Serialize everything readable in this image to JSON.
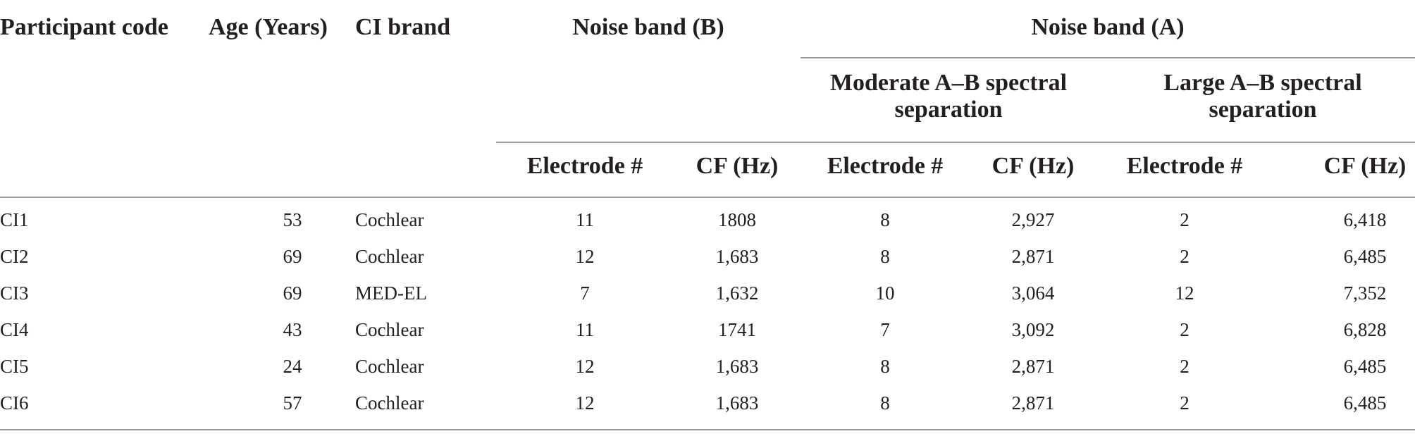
{
  "table": {
    "header_top": {
      "participant_code": "Participant code",
      "age": "Age (Years)",
      "ci_brand": "CI brand",
      "noise_band_b": "Noise band (B)",
      "noise_band_a": "Noise band (A)"
    },
    "header_mid": {
      "moderate": "Moderate A–B spectral separation",
      "large": "Large A–B spectral separation"
    },
    "header_sub": {
      "b_electrode": "Electrode #",
      "b_cf": "CF (Hz)",
      "mod_electrode": "Electrode #",
      "mod_cf": "CF (Hz)",
      "large_electrode": "Electrode #",
      "large_cf": "CF (Hz)"
    },
    "rows": [
      {
        "code": "CI1",
        "age": "53",
        "brand": "Cochlear",
        "b_electrode": "11",
        "b_cf": "1808",
        "mod_electrode": "8",
        "mod_cf": "2,927",
        "large_electrode": "2",
        "large_cf": "6,418"
      },
      {
        "code": "CI2",
        "age": "69",
        "brand": "Cochlear",
        "b_electrode": "12",
        "b_cf": "1,683",
        "mod_electrode": "8",
        "mod_cf": "2,871",
        "large_electrode": "2",
        "large_cf": "6,485"
      },
      {
        "code": "CI3",
        "age": "69",
        "brand": "MED-EL",
        "b_electrode": "7",
        "b_cf": "1,632",
        "mod_electrode": "10",
        "mod_cf": "3,064",
        "large_electrode": "12",
        "large_cf": "7,352"
      },
      {
        "code": "CI4",
        "age": "43",
        "brand": "Cochlear",
        "b_electrode": "11",
        "b_cf": "1741",
        "mod_electrode": "7",
        "mod_cf": "3,092",
        "large_electrode": "2",
        "large_cf": "6,828"
      },
      {
        "code": "CI5",
        "age": "24",
        "brand": "Cochlear",
        "b_electrode": "12",
        "b_cf": "1,683",
        "mod_electrode": "8",
        "mod_cf": "2,871",
        "large_electrode": "2",
        "large_cf": "6,485"
      },
      {
        "code": "CI6",
        "age": "57",
        "brand": "Cochlear",
        "b_electrode": "12",
        "b_cf": "1,683",
        "mod_electrode": "8",
        "mod_cf": "2,871",
        "large_electrode": "2",
        "large_cf": "6,485"
      }
    ]
  }
}
